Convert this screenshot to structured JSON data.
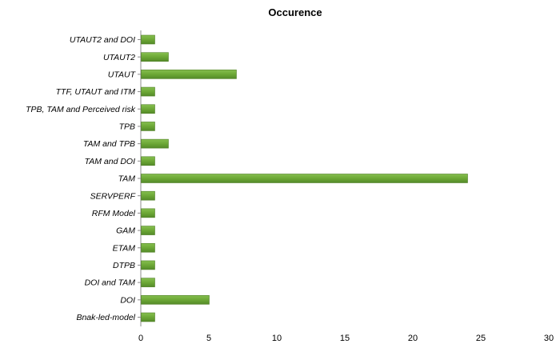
{
  "chart_data": {
    "type": "bar",
    "orientation": "horizontal",
    "title": "Occurence",
    "xlabel": "",
    "ylabel": "",
    "categories": [
      "UTAUT2 and DOI",
      "UTAUT2",
      "UTAUT",
      "TTF, UTAUT and ITM",
      "TPB, TAM and Perceived risk",
      "TPB",
      "TAM and TPB",
      "TAM and DOI",
      "TAM",
      "SERVPERF",
      "RFM Model",
      "GAM",
      "ETAM",
      "DTPB",
      "DOI and TAM",
      "DOI",
      "Bnak-led-model"
    ],
    "values": [
      1,
      2,
      7,
      1,
      1,
      1,
      2,
      1,
      24,
      1,
      1,
      1,
      1,
      1,
      1,
      5,
      1
    ],
    "xlim": [
      0,
      30
    ],
    "xticks": [
      "0",
      "5",
      "10",
      "15",
      "20",
      "25",
      "30"
    ],
    "grid": false,
    "legend": "none",
    "bar_color": "#6aa534",
    "bar_edge_color": "#4f7f25"
  }
}
